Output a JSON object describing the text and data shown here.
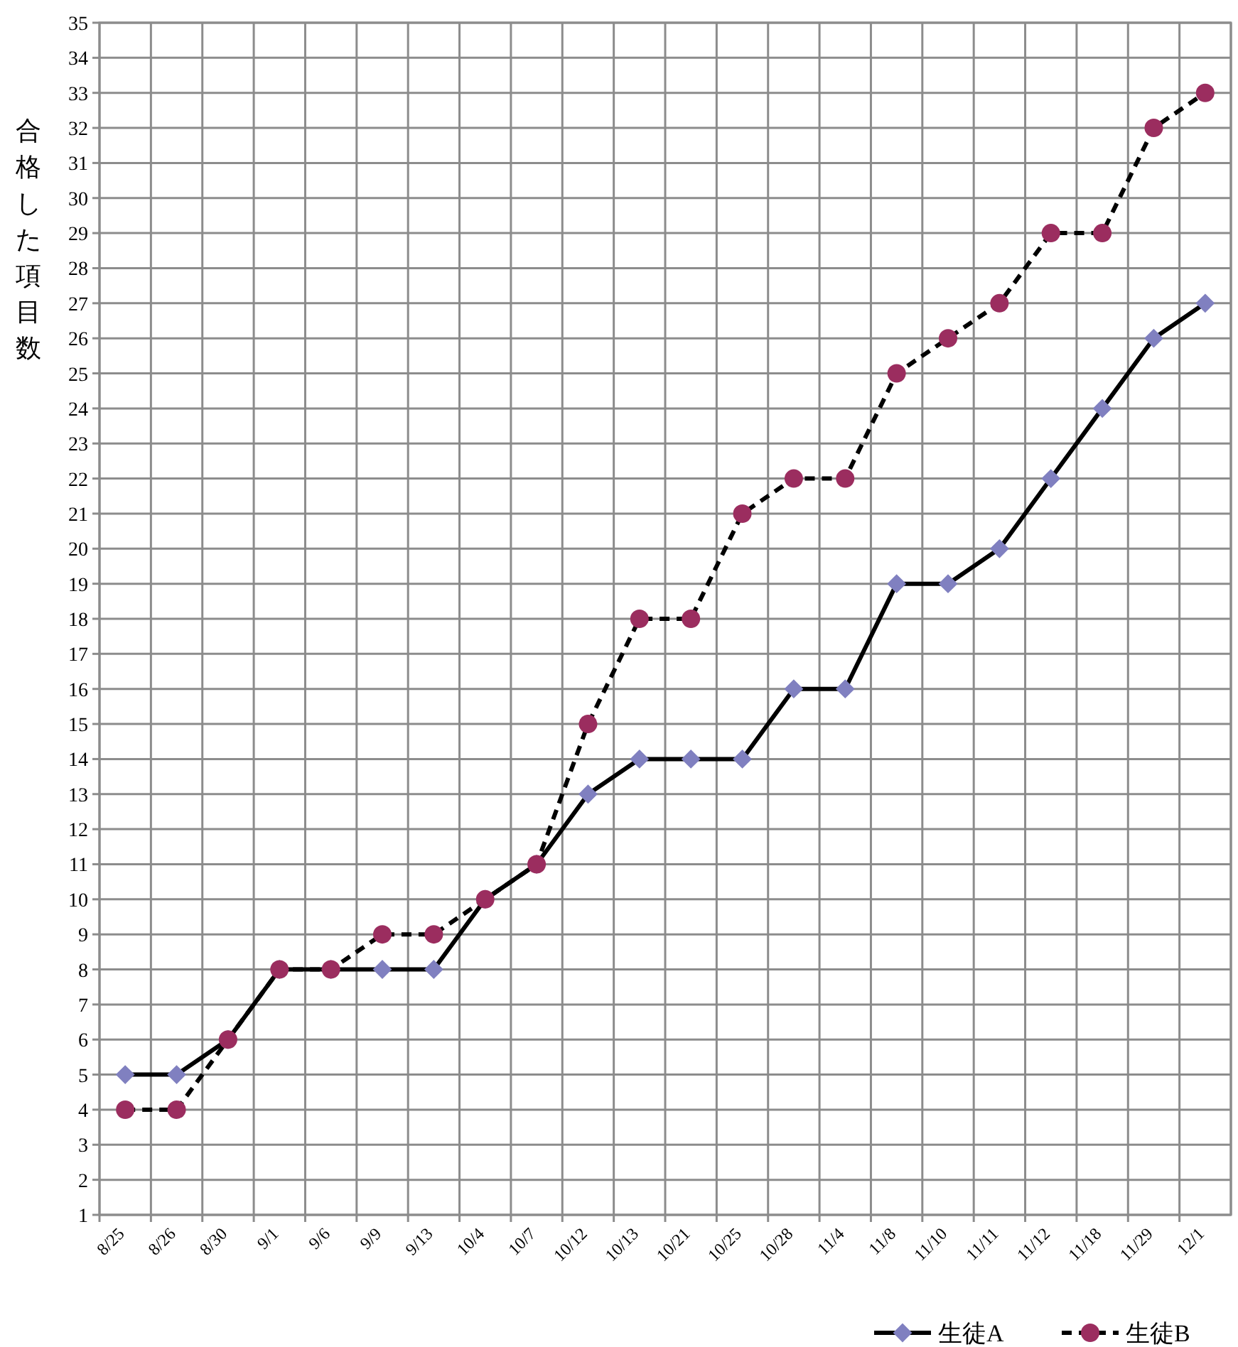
{
  "chart_data": {
    "type": "line",
    "ylabel": "合格した項目数",
    "categories": [
      "8/25",
      "8/26",
      "8/30",
      "9/1",
      "9/6",
      "9/9",
      "9/13",
      "10/4",
      "10/7",
      "10/12",
      "10/13",
      "10/21",
      "10/25",
      "10/28",
      "11/4",
      "11/8",
      "11/10",
      "11/11",
      "11/12",
      "11/18",
      "11/29",
      "12/1"
    ],
    "series": [
      {
        "name": "生徒A",
        "color": "#8080c0",
        "marker": "diamond",
        "line_style": "solid",
        "values": [
          5,
          5,
          6,
          8,
          8,
          8,
          8,
          10,
          11,
          13,
          14,
          14,
          14,
          16,
          16,
          19,
          19,
          20,
          22,
          24,
          26,
          27
        ]
      },
      {
        "name": "生徒B",
        "color": "#9b2d5f",
        "marker": "circle",
        "line_style": "dashed",
        "values": [
          4,
          4,
          6,
          8,
          8,
          9,
          9,
          10,
          11,
          15,
          18,
          18,
          21,
          22,
          22,
          25,
          26,
          27,
          29,
          29,
          32,
          33
        ]
      }
    ],
    "ylim": [
      1,
      35
    ],
    "yticks": [
      1,
      2,
      3,
      4,
      5,
      6,
      7,
      8,
      9,
      10,
      11,
      12,
      13,
      14,
      15,
      16,
      17,
      18,
      19,
      20,
      21,
      22,
      23,
      24,
      25,
      26,
      27,
      28,
      29,
      30,
      31,
      32,
      33,
      34,
      35
    ],
    "grid": true,
    "legend": "bottom right"
  }
}
